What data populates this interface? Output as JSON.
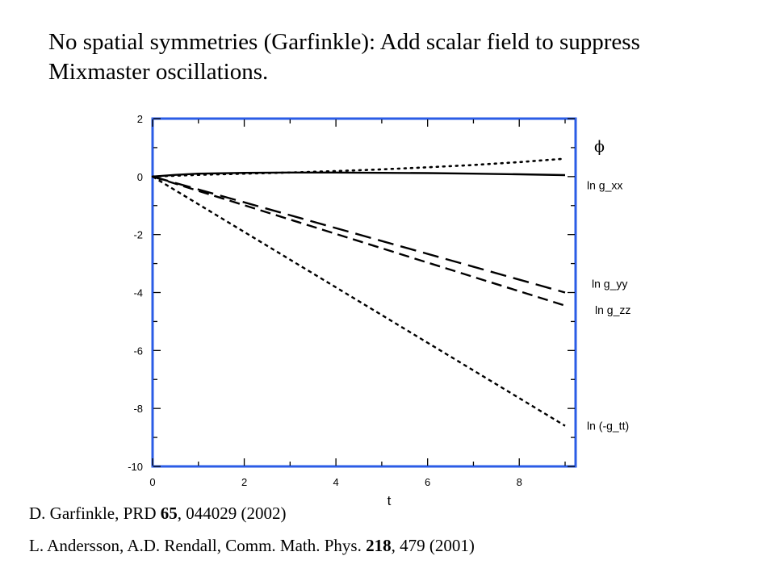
{
  "headline": {
    "line1": "No spatial symmetries (Garfinkle):  Add scalar field to suppress",
    "line2": "Mixmaster oscillations."
  },
  "chart_data": {
    "type": "line",
    "xlabel": "t",
    "ylabel": "",
    "xlim": [
      0,
      9
    ],
    "ylim": [
      -10,
      2
    ],
    "xticks": [
      0,
      2,
      4,
      6,
      8
    ],
    "yticks": [
      2,
      0,
      -2,
      -4,
      -6,
      -8,
      -10
    ],
    "grid": false,
    "frame_color": "#2b5ce6",
    "series": [
      {
        "name": "ϕ",
        "style": "dotted",
        "x": [
          0,
          1,
          2,
          3,
          4,
          5,
          6,
          7,
          8,
          9
        ],
        "y": [
          0,
          0.06,
          0.1,
          0.14,
          0.19,
          0.25,
          0.32,
          0.4,
          0.5,
          0.62
        ]
      },
      {
        "name": "ln g_xx",
        "style": "solid",
        "x": [
          0,
          0.5,
          1,
          2,
          3,
          4,
          5,
          6,
          7,
          8,
          9
        ],
        "y": [
          0,
          0.06,
          0.1,
          0.13,
          0.14,
          0.14,
          0.13,
          0.12,
          0.1,
          0.08,
          0.05
        ]
      },
      {
        "name": "ln g_yy",
        "style": "longdash",
        "x": [
          0,
          9
        ],
        "y": [
          0,
          -4.0
        ]
      },
      {
        "name": "ln g_zz",
        "style": "dashed",
        "x": [
          0,
          9
        ],
        "y": [
          0,
          -4.45
        ]
      },
      {
        "name": "ln (-g_tt)",
        "style": "shortdash",
        "x": [
          0,
          9
        ],
        "y": [
          0,
          -8.6
        ]
      }
    ],
    "series_label_y": [
      1.0,
      -0.3,
      -3.7,
      -4.6,
      -8.6
    ]
  },
  "references": {
    "ref1_pre": "D. Garfinkle, PRD ",
    "ref1_bold": "65",
    "ref1_post": ", 044029 (2002)",
    "ref2_pre": "L. Andersson, A.D. Rendall, Comm. Math. Phys. ",
    "ref2_bold": "218",
    "ref2_post": ", 479 (2001)"
  }
}
